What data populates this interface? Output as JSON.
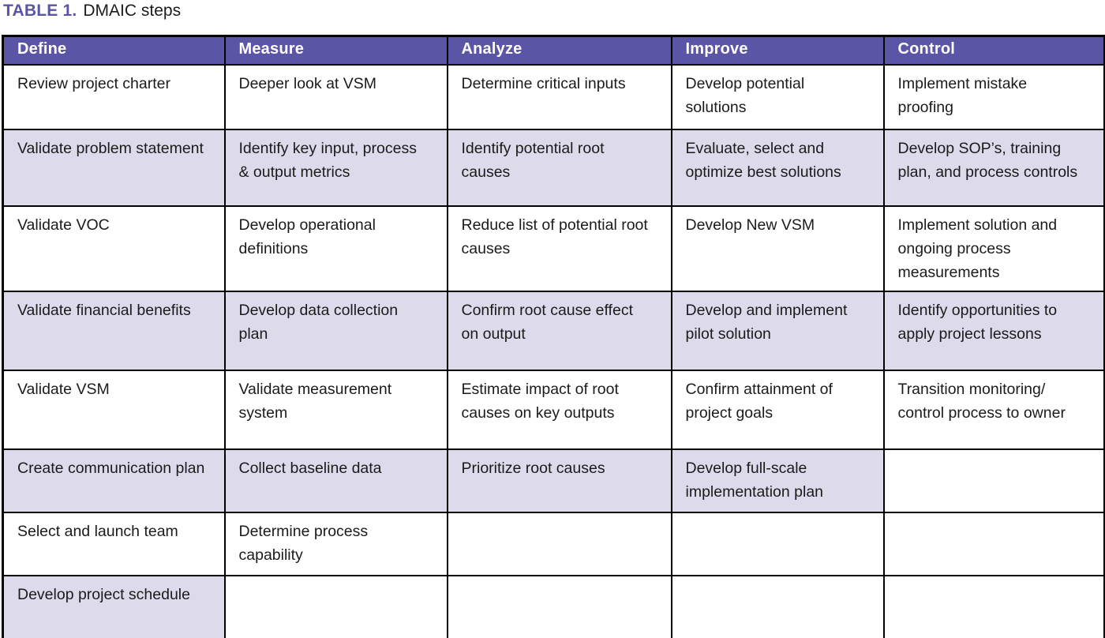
{
  "title": {
    "label": "TABLE 1.",
    "text": "DMAIC steps"
  },
  "colors": {
    "title_label": "#5B55A5",
    "header_bg": "#5B55A5",
    "header_text": "#FFFFFF",
    "shaded_row_bg": "#DCDAEB",
    "border": "#000000",
    "body_text": "#1B1B1B"
  },
  "table": {
    "headers": [
      "Define",
      "Measure",
      "Analyze",
      "Improve",
      "Control"
    ],
    "rows": [
      {
        "shaded": false,
        "cells": [
          "Review project charter",
          "Deeper look at VSM",
          "Determine critical inputs",
          "Develop potential solutions",
          "Implement mistake proofing"
        ]
      },
      {
        "shaded": true,
        "cells": [
          "Validate problem statement",
          "Identify key input, process & output metrics",
          "Identify potential root causes",
          "Evaluate, select and optimize best solutions",
          "Develop SOP’s, training plan, and process controls"
        ]
      },
      {
        "shaded": false,
        "cells": [
          "Validate VOC",
          "Develop operational definitions",
          "Reduce list of potential root causes",
          "Develop New VSM",
          "Implement solution and ongoing process measurements"
        ]
      },
      {
        "shaded": true,
        "cells": [
          "Validate financial benefits",
          "Develop data collection plan",
          "Confirm root cause effect on output",
          "Develop and implement pilot solution",
          "Identify opportunities to apply project lessons"
        ]
      },
      {
        "shaded": false,
        "cells": [
          "Validate VSM",
          "Validate measurement system",
          "Estimate impact of root causes on key outputs",
          "Confirm attainment of project goals",
          "Transition monitoring/ control process to owner"
        ]
      },
      {
        "shaded": true,
        "cells": [
          "Create communication plan",
          "Collect baseline data",
          "Prioritize root causes",
          "Develop full-scale implementation plan",
          ""
        ]
      },
      {
        "shaded": false,
        "cells": [
          "Select and launch team",
          "Determine process capability",
          "",
          "",
          ""
        ]
      },
      {
        "shaded": true,
        "cells": [
          "Develop project schedule",
          "",
          "",
          "",
          ""
        ]
      }
    ]
  }
}
